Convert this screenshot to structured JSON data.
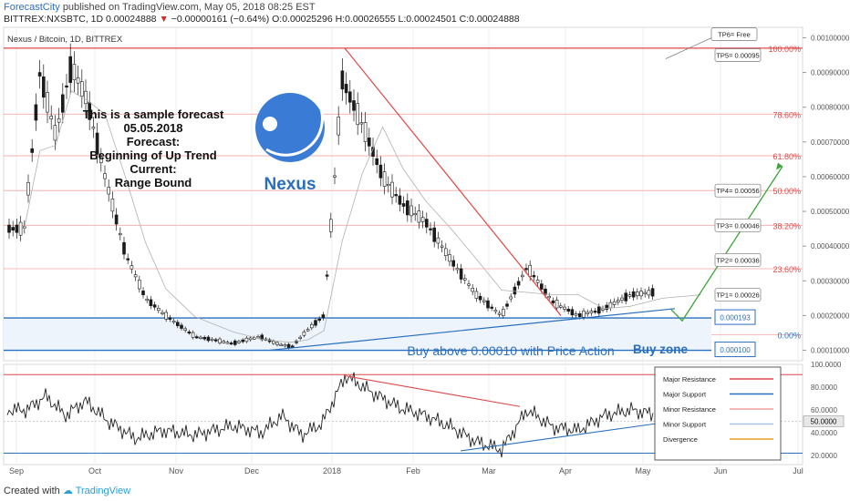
{
  "header": {
    "brand": "ForecastCity",
    "published": "published on TradingView.com, May 05, 2018 08:25 EST",
    "symbol": "BITTREX:NXSBTC, 1D",
    "last": "0.00024888",
    "change": "−0.00000161 (−0.64%)",
    "ohlc": "O:0.00025296 H:0.00026555 L:0.00024501 C:0.00024888"
  },
  "footer": {
    "created": "Created with",
    "tv": "TradingView"
  },
  "chart_data": [
    {
      "type": "candlestick",
      "instrument": "Nexus / Bitcoin, 1D, BITTREX",
      "x_ticks": [
        "Sep",
        "Oct",
        "Nov",
        "Dec",
        "2018",
        "Feb",
        "Mar",
        "Apr",
        "May",
        "Jun",
        "Jul"
      ],
      "y_ticks": [
        "0.00100000",
        "0.00090000",
        "0.00080000",
        "0.00070000",
        "0.00060000",
        "0.00050000",
        "0.00040000",
        "0.00030000",
        "0.00020000",
        "0.00010000"
      ],
      "ylim": [
        7e-05,
        0.00103
      ],
      "price_path": [
        [
          "Sep",
          0.00045
        ],
        [
          "Sep",
          0.0009
        ],
        [
          "Sep",
          0.00072
        ],
        [
          "Sep",
          0.00092
        ],
        [
          "Sep",
          0.00082
        ],
        [
          "Oct",
          0.0006
        ],
        [
          "Oct",
          0.00038
        ],
        [
          "Oct",
          0.00025
        ],
        [
          "Oct",
          0.0002
        ],
        [
          "Nov",
          0.00014
        ],
        [
          "Nov",
          0.00012
        ],
        [
          "Dec",
          0.00014
        ],
        [
          "Dec",
          0.00012
        ],
        [
          "Dec",
          0.00011
        ],
        [
          "Dec",
          0.00016
        ],
        [
          "Dec",
          0.0002
        ],
        [
          "2018",
          0.00088
        ],
        [
          "2018",
          0.00075
        ],
        [
          "2018",
          0.0006
        ],
        [
          "2018",
          0.00052
        ],
        [
          "Feb",
          0.00047
        ],
        [
          "Feb",
          0.00036
        ],
        [
          "Feb",
          0.00026
        ],
        [
          "Mar",
          0.0002
        ],
        [
          "Mar",
          0.00034
        ],
        [
          "Mar",
          0.00024
        ],
        [
          "Apr",
          0.0002
        ],
        [
          "Apr",
          0.00022
        ],
        [
          "Apr",
          0.00026
        ],
        [
          "May",
          0.00027
        ],
        [
          "May",
          0.00025
        ]
      ],
      "fib_levels": [
        {
          "label": "100.00%",
          "value": 0.00097
        },
        {
          "label": "78.60%",
          "value": 0.00078
        },
        {
          "label": "61.80%",
          "value": 0.00066
        },
        {
          "label": "50.00%",
          "value": 0.00056
        },
        {
          "label": "38.20%",
          "value": 0.00046
        },
        {
          "label": "23.60%",
          "value": 0.000335
        },
        {
          "label": "0.00%",
          "value": 0.000145
        }
      ],
      "targets": [
        {
          "label": "TP6= Free",
          "value": 0.00101
        },
        {
          "label": "TP5= 0.00095",
          "value": 0.00095
        },
        {
          "label": "TP4= 0.00056",
          "value": 0.00056
        },
        {
          "label": "TP3= 0.00046",
          "value": 0.00046
        },
        {
          "label": "TP2= 0.00036",
          "value": 0.00036
        },
        {
          "label": "TP1= 0.00026",
          "value": 0.00026
        }
      ],
      "zone_labels": [
        {
          "label": "0.000193",
          "value": 0.000193
        },
        {
          "label": "0.000100",
          "value": 0.0001
        }
      ],
      "annotations": {
        "forecast_text": [
          "This is a sample forecast",
          "05.05.2018",
          "Forecast:",
          "Beginning of Up Trend",
          "Current:",
          "Range Bound"
        ],
        "logo_text": "Nexus",
        "buy_text": "Buy above 0.00010 with Price Action",
        "buy_zone": "Buy zone"
      },
      "colors": {
        "resistance": "#e04848",
        "support": "#2a6fbf",
        "projection": "#3aa53a",
        "up": "#ffffff",
        "down": "#1a1a1a"
      }
    },
    {
      "type": "line",
      "name": "oscillator",
      "y_ticks": [
        "100.0000",
        "80.0000",
        "60.0000",
        "50.0000",
        "40.0000",
        "20.0000"
      ],
      "ylim": [
        12,
        100
      ],
      "current_value": "50.0000",
      "path": [
        [
          "Sep",
          60
        ],
        [
          "Sep",
          72
        ],
        [
          "Sep",
          55
        ],
        [
          "Sep",
          68
        ],
        [
          "Oct",
          50
        ],
        [
          "Oct",
          35
        ],
        [
          "Oct",
          42
        ],
        [
          "Nov",
          38
        ],
        [
          "Nov",
          46
        ],
        [
          "Dec",
          40
        ],
        [
          "Dec",
          55
        ],
        [
          "Dec",
          38
        ],
        [
          "Dec",
          48
        ],
        [
          "2018",
          90
        ],
        [
          "2018",
          75
        ],
        [
          "2018",
          62
        ],
        [
          "Feb",
          55
        ],
        [
          "Feb",
          45
        ],
        [
          "Feb",
          32
        ],
        [
          "Mar",
          25
        ],
        [
          "Mar",
          60
        ],
        [
          "Mar",
          45
        ],
        [
          "Apr",
          42
        ],
        [
          "Apr",
          55
        ],
        [
          "Apr",
          60
        ],
        [
          "May",
          55
        ],
        [
          "May",
          50
        ]
      ],
      "legend": [
        {
          "label": "Major Resistance",
          "color": "#e04848"
        },
        {
          "label": "Major Support",
          "color": "#2a6fbf"
        },
        {
          "label": "Minor Resistance",
          "color": "#f0a0a0"
        },
        {
          "label": "Minor Support",
          "color": "#a8c4e6"
        },
        {
          "label": "Divergence",
          "color": "#e8a020"
        }
      ]
    }
  ]
}
